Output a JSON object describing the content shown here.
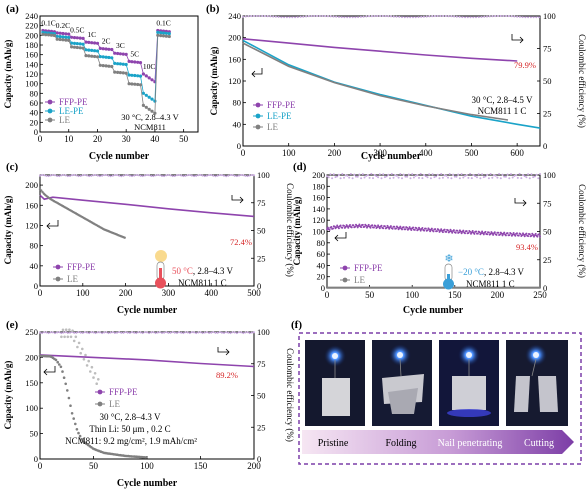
{
  "panels": {
    "a": {
      "label": "(a)",
      "xlabel": "Cycle number",
      "ylabel": "Capacity (mAh/g)",
      "xlim": [
        0,
        55
      ],
      "ylim": [
        0,
        240
      ],
      "xticks": [
        "0",
        "10",
        "20",
        "30",
        "40",
        "50"
      ],
      "yticks": [
        "0",
        "20",
        "40",
        "60",
        "80",
        "100",
        "120",
        "140",
        "160",
        "180",
        "200",
        "220",
        "240"
      ],
      "legend": [
        "FFP-PE",
        "LE-PE",
        "LE"
      ],
      "note_lines": [
        "30 °C, 2.8–4.3 V",
        "NCM811"
      ],
      "rate_labels": [
        "0.1C",
        "0.2C",
        "0.5C",
        "1C",
        "2C",
        "3C",
        "5C",
        "10C",
        "0.1C"
      ]
    },
    "b": {
      "label": "(b)",
      "xlabel": "Cycle number",
      "ylabel": "Capacity (mAh/g)",
      "ylabel2": "Coulombic efficiency (%)",
      "xticks": [
        "0",
        "100",
        "200",
        "300",
        "400",
        "500",
        "600"
      ],
      "yticks": [
        "0",
        "40",
        "80",
        "120",
        "160",
        "200",
        "240"
      ],
      "y2ticks": [
        "0",
        "25",
        "50",
        "75",
        "100"
      ],
      "legend": [
        "FFP-PE",
        "LE-PE",
        "LE"
      ],
      "note_lines": [
        "30 °C, 2.8–4.5 V",
        "NCM811 1 C"
      ],
      "retention": "79.9%"
    },
    "c": {
      "label": "(c)",
      "xlabel": "Cycle number",
      "ylabel": "Capacity (mAh/g)",
      "ylabel2": "Coulombic efficiency (%)",
      "xticks": [
        "0",
        "100",
        "200",
        "300",
        "400",
        "500"
      ],
      "yticks": [
        "0",
        "40",
        "80",
        "120",
        "160",
        "200"
      ],
      "y2ticks": [
        "0",
        "25",
        "50",
        "75",
        "100"
      ],
      "legend": [
        "FFP-PE",
        "LE"
      ],
      "note_temp": "50 °C",
      "note_rest": ", 2.8–4.3 V",
      "note_line2": "NCM811 1 C",
      "retention": "72.4%"
    },
    "d": {
      "label": "(d)",
      "xlabel": "Cycle number",
      "ylabel": "Capacity (mAh/g)",
      "ylabel2": "Coulombic efficiency (%)",
      "xticks": [
        "0",
        "50",
        "100",
        "150",
        "200",
        "250"
      ],
      "yticks": [
        "0",
        "20",
        "40",
        "60",
        "80",
        "100",
        "120",
        "140",
        "160",
        "180",
        "200"
      ],
      "y2ticks": [
        "0",
        "25",
        "50",
        "75",
        "100"
      ],
      "legend": [
        "FFP-PE",
        "LE"
      ],
      "note_temp": "−20 °C",
      "note_rest": ", 2.8–4.3 V",
      "note_line2": "NCM811 1 C",
      "retention": "93.4%"
    },
    "e": {
      "label": "(e)",
      "xlabel": "Cycle number",
      "ylabel": "Capacity (mAh/g)",
      "ylabel2": "Coulombic efficiency (%)",
      "xticks": [
        "0",
        "50",
        "100",
        "150",
        "200"
      ],
      "yticks": [
        "0",
        "50",
        "100",
        "150",
        "200",
        "250"
      ],
      "y2ticks": [
        "0",
        "25",
        "50",
        "75",
        "100"
      ],
      "legend": [
        "FFP-PE",
        "LE"
      ],
      "note_lines": [
        "30 °C, 2.8–4.3 V",
        "Thin Li: 50 μm , 0.2 C",
        "NCM811: 9.2 mg/cm², 1.9 mAh/cm²"
      ],
      "retention": "89.2%"
    },
    "f": {
      "label": "(f)",
      "stages": [
        "Pristine",
        "Folding",
        "Nail penetrating",
        "Cutting"
      ]
    }
  },
  "colors": {
    "ffp": "#8e44ad",
    "lepe": "#1aa3c8",
    "le": "#808080",
    "retention": "#d62728",
    "ce_ffp": "#c9a9e0",
    "ce_le": "#bdbdbd",
    "hot": "#e8505b",
    "cold": "#3a9fd8"
  },
  "chart_data": [
    {
      "panel": "a",
      "type": "line",
      "title": "",
      "xlabel": "Cycle number",
      "ylabel": "Capacity (mAh/g)",
      "xlim": [
        0,
        55
      ],
      "ylim": [
        0,
        240
      ],
      "legend_position": "bottom-left",
      "rate_steps": [
        "0.1C",
        "0.2C",
        "0.5C",
        "1C",
        "2C",
        "3C",
        "5C",
        "10C",
        "0.1C"
      ],
      "cycles_per_step": 5,
      "series": [
        {
          "name": "FFP-PE",
          "step_values": [
            210,
            205,
            196,
            186,
            173,
            163,
            146,
            120,
            210
          ]
        },
        {
          "name": "LE-PE",
          "step_values": [
            206,
            198,
            184,
            170,
            156,
            142,
            118,
            80,
            206
          ]
        },
        {
          "name": "LE",
          "step_values": [
            202,
            192,
            176,
            158,
            138,
            124,
            100,
            55,
            200
          ]
        }
      ]
    },
    {
      "panel": "b",
      "type": "line",
      "title": "",
      "xlabel": "Cycle number",
      "ylabel": "Capacity (mAh/g)",
      "ylabel2": "Coulombic efficiency (%)",
      "xlim": [
        0,
        650
      ],
      "ylim": [
        0,
        240
      ],
      "y2lim": [
        0,
        100
      ],
      "legend_position": "bottom-left",
      "series": [
        {
          "name": "FFP-PE",
          "x": [
            0,
            100,
            200,
            300,
            400,
            500,
            600
          ],
          "y": [
            198,
            190,
            182,
            175,
            168,
            162,
            157
          ]
        },
        {
          "name": "LE-PE",
          "x": [
            0,
            100,
            200,
            300,
            400,
            500,
            600,
            650
          ],
          "y": [
            195,
            150,
            118,
            95,
            75,
            55,
            40,
            33
          ]
        },
        {
          "name": "LE",
          "x": [
            0,
            100,
            200,
            300,
            400,
            500,
            580
          ],
          "y": [
            190,
            147,
            117,
            93,
            74,
            58,
            48
          ]
        },
        {
          "name": "CE",
          "x": [
            0,
            650
          ],
          "y": [
            99.5,
            99.5
          ],
          "axis": "right"
        }
      ]
    },
    {
      "panel": "c",
      "type": "line",
      "title": "",
      "xlabel": "Cycle number",
      "ylabel": "Capacity (mAh/g)",
      "ylabel2": "Coulombic efficiency (%)",
      "xlim": [
        0,
        500
      ],
      "ylim": [
        0,
        220
      ],
      "y2lim": [
        0,
        100
      ],
      "legend_position": "bottom-left",
      "series": [
        {
          "name": "FFP-PE",
          "x": [
            0,
            10,
            30,
            100,
            200,
            300,
            400,
            500
          ],
          "y": [
            180,
            172,
            176,
            170,
            162,
            153,
            145,
            138
          ]
        },
        {
          "name": "LE",
          "x": [
            0,
            10,
            25,
            50,
            100,
            150,
            200
          ],
          "y": [
            192,
            182,
            172,
            160,
            136,
            112,
            95
          ]
        },
        {
          "name": "CE",
          "x": [
            0,
            500
          ],
          "y": [
            99.5,
            99.5
          ],
          "axis": "right"
        }
      ]
    },
    {
      "panel": "d",
      "type": "line",
      "title": "",
      "xlabel": "Cycle number",
      "ylabel": "Capacity (mAh/g)",
      "ylabel2": "Coulombic efficiency (%)",
      "xlim": [
        0,
        250
      ],
      "ylim": [
        0,
        200
      ],
      "y2lim": [
        0,
        100
      ],
      "legend_position": "bottom-left",
      "series": [
        {
          "name": "FFP-PE",
          "x": [
            0,
            10,
            40,
            100,
            150,
            200,
            250
          ],
          "y": [
            104,
            108,
            110,
            105,
            100,
            96,
            93
          ]
        },
        {
          "name": "LE",
          "x": [
            0,
            250
          ],
          "y": [
            1,
            1
          ]
        },
        {
          "name": "CE",
          "x": [
            0,
            250
          ],
          "y": [
            99,
            99
          ],
          "axis": "right"
        }
      ]
    },
    {
      "panel": "e",
      "type": "line",
      "title": "",
      "xlabel": "Cycle number",
      "ylabel": "Capacity (mAh/g)",
      "ylabel2": "Coulombic efficiency (%)",
      "xlim": [
        0,
        200
      ],
      "ylim": [
        0,
        250
      ],
      "y2lim": [
        0,
        100
      ],
      "legend_position": "center-left",
      "series": [
        {
          "name": "FFP-PE",
          "x": [
            0,
            20,
            50,
            100,
            150,
            200
          ],
          "y": [
            205,
            203,
            200,
            195,
            188,
            182
          ]
        },
        {
          "name": "LE",
          "x": [
            0,
            10,
            15,
            20,
            25,
            30,
            35,
            40,
            50,
            60,
            80,
            100
          ],
          "y": [
            203,
            202,
            195,
            180,
            140,
            90,
            55,
            35,
            20,
            12,
            6,
            3
          ]
        },
        {
          "name": "CE",
          "x": [
            0,
            200
          ],
          "y": [
            99.5,
            99.5
          ],
          "axis": "right"
        }
      ]
    }
  ]
}
